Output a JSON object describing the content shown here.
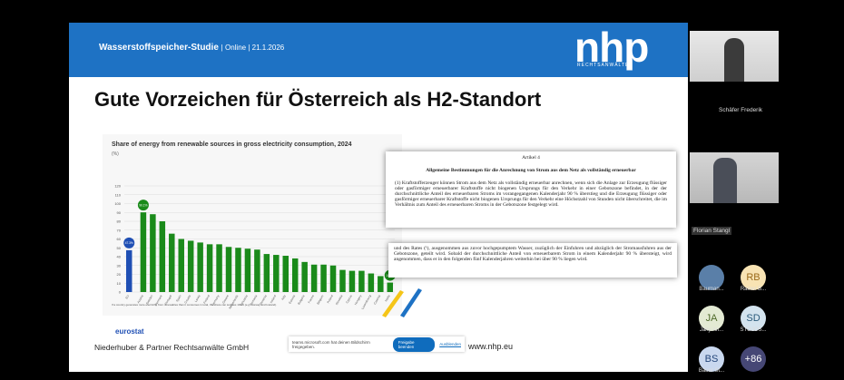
{
  "slide": {
    "header_title": "Wasserstoffspeicher-Studie",
    "header_meta": "| Online | 21.1.2026",
    "logo": "nhp",
    "logo_sub": "RECHTSANWÄLTE",
    "title": "Gute Vorzeichen für Österreich als H2-Standort",
    "footer": "Niederhuber & Partner Rechtsanwälte GmbH",
    "url": "www.nhp.eu",
    "eurostat": "eurostat"
  },
  "chart_data": {
    "type": "bar",
    "title": "Share of energy from renewable sources in gross electricity consumption, 2024",
    "ylabel": "(%)",
    "ylim": [
      0,
      120
    ],
    "yticks": [
      0,
      10,
      20,
      30,
      40,
      50,
      60,
      70,
      80,
      90,
      100,
      110,
      120
    ],
    "grid": true,
    "categories": [
      "EU",
      "Austria",
      "Sweden",
      "Denmark",
      "Portugal",
      "Spain",
      "Croatia",
      "Latvia",
      "Finland",
      "Germany",
      "Greece",
      "Netherlands",
      "Lithuania",
      "Romania",
      "Slovenia",
      "Ireland",
      "Italy",
      "Estonia",
      "Bulgaria",
      "France",
      "Belgium",
      "Poland",
      "Slovakia",
      "Cyprus",
      "Hungary",
      "Luxembourg",
      "Czechia",
      "Malta"
    ],
    "values": [
      47.3,
      90.1,
      88,
      80,
      66,
      60,
      58,
      56,
      54,
      54,
      51,
      50,
      49,
      48,
      43,
      42,
      41,
      38,
      34,
      31,
      31,
      30,
      25,
      24,
      24,
      21,
      18,
      10.7
    ],
    "highlight_colors": {
      "EU": "#1f4fb4",
      "default": "#1a8a1a"
    },
    "data_labels": {
      "EU": "47.3%",
      "Austria": "90.1%",
      "Malta": "10.7%"
    },
    "footnote": "If a country generates more electricity from renewables than it consumes in total, the share can surpass 100% (e.g. Norway and Iceland)."
  },
  "document": {
    "article": "Artikel 4",
    "heading": "Allgemeine Bestimmungen für die Anrechnung von Strom aus dem Netz als vollständig erneuerbar",
    "para1": "(1) Kraftstofferzeuger können Strom aus dem Netz als vollständig erneuerbar anrechnen, wenn sich die Anlage zur Erzeugung flüssiger oder gasförmiger erneuerbarer Kraftstoffe nicht biogenen Ursprungs für den Verkehr in einer Gebotszone befindet, in der der durchschnittliche Anteil des erneuerbaren Stroms im vorangegangenen Kalenderjahr 90 % überstieg und die Erzeugung flüssiger oder gasförmiger erneuerbarer Kraftstoffe nicht biogenen Ursprungs für den Verkehr eine Höchstzahl von Stunden nicht überschreitet, die im Verhältnis zum Anteil des erneuerbaren Stroms in der Gebotszone festgelegt wird.",
    "para2": "und des Rates (¹), ausgenommen aus zuvor hochgepumptem Wasser, zuzüglich der Einfuhren und abzüglich der Stromausfuhren aus der Gebotszone, geteilt wird. Sobald der durchschnittliche Anteil von erneuerbarem Strom in einem Kalenderjahr 90 % übersteigt, wird angenommen, dass er in den folgenden fünf Kalenderjahren weiterhin bei über 90 % liegen wird."
  },
  "share_bar": {
    "text": "teams.microsoft.com hat deinen Bildschirm freigegeben.",
    "stop": "Freigabe beenden",
    "hide": "Ausblenden"
  },
  "participants": {
    "videos": [
      "Schäfer Frederik",
      "Florian Stangl"
    ],
    "avatars": [
      {
        "initials": "",
        "name": "Bauman...",
        "bg": "#5a7fa8",
        "fg": "#fff"
      },
      {
        "initials": "RB",
        "name": "Rainer B...",
        "bg": "#f8e3b3",
        "fg": "#9a6a1a"
      },
      {
        "initials": "JA",
        "name": "Jany An...",
        "bg": "#e3ead3",
        "fg": "#4f6a2a"
      },
      {
        "initials": "SD",
        "name": "STOJOS...",
        "bg": "#d3e3ee",
        "fg": "#2a5a7a"
      },
      {
        "initials": "BS",
        "name": "Bauer St...",
        "bg": "#c9d8ef",
        "fg": "#24467a"
      },
      {
        "initials": "+86",
        "name": "",
        "bg": "#464775",
        "fg": "#fff"
      }
    ]
  }
}
